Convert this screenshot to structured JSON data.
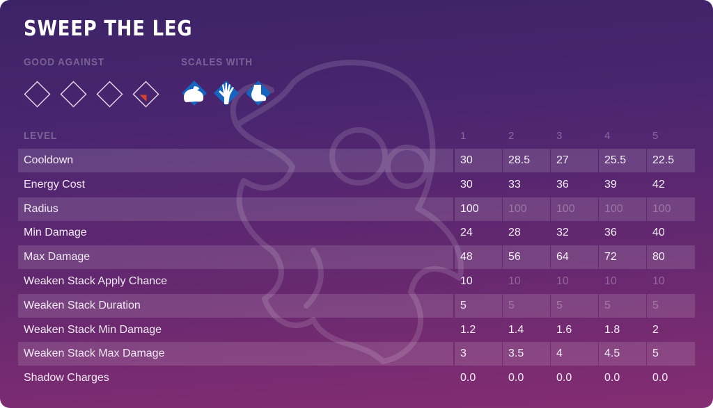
{
  "ability": {
    "title": "SWEEP THE LEG",
    "good_against_label": "GOOD AGAINST",
    "scales_with_label": "SCALES WITH",
    "good_against": [
      {
        "icon": "empty-diamond-icon",
        "active": false
      },
      {
        "icon": "empty-diamond-icon",
        "active": false
      },
      {
        "icon": "empty-diamond-icon",
        "active": false
      },
      {
        "icon": "diamond-red-corner-icon",
        "active": true,
        "accent": "#d9432e"
      }
    ],
    "scales_with": [
      {
        "icon": "strength-flexed-arm-icon",
        "color": "#1565c0"
      },
      {
        "icon": "dexterity-hand-icon",
        "color": "#1565c0"
      },
      {
        "icon": "foot-icon",
        "color": "#1565c0"
      }
    ]
  },
  "table": {
    "level_label": "LEVEL",
    "levels": [
      "1",
      "2",
      "3",
      "4",
      "5"
    ],
    "rows": [
      {
        "name": "Cooldown",
        "values": [
          "30",
          "28.5",
          "27",
          "25.5",
          "22.5"
        ],
        "dim": [
          false,
          false,
          false,
          false,
          false
        ]
      },
      {
        "name": "Energy Cost",
        "values": [
          "30",
          "33",
          "36",
          "39",
          "42"
        ],
        "dim": [
          false,
          false,
          false,
          false,
          false
        ]
      },
      {
        "name": "Radius",
        "values": [
          "100",
          "100",
          "100",
          "100",
          "100"
        ],
        "dim": [
          false,
          true,
          true,
          true,
          true
        ]
      },
      {
        "name": "Min Damage",
        "values": [
          "24",
          "28",
          "32",
          "36",
          "40"
        ],
        "dim": [
          false,
          false,
          false,
          false,
          false
        ]
      },
      {
        "name": "Max Damage",
        "values": [
          "48",
          "56",
          "64",
          "72",
          "80"
        ],
        "dim": [
          false,
          false,
          false,
          false,
          false
        ]
      },
      {
        "name": "Weaken Stack Apply Chance",
        "values": [
          "10",
          "10",
          "10",
          "10",
          "10"
        ],
        "dim": [
          false,
          true,
          true,
          true,
          true
        ]
      },
      {
        "name": "Weaken Stack Duration",
        "values": [
          "5",
          "5",
          "5",
          "5",
          "5"
        ],
        "dim": [
          false,
          true,
          true,
          true,
          true
        ]
      },
      {
        "name": "Weaken Stack Min Damage",
        "values": [
          "1.2",
          "1.4",
          "1.6",
          "1.8",
          "2"
        ],
        "dim": [
          false,
          false,
          false,
          false,
          false
        ]
      },
      {
        "name": "Weaken Stack Max Damage",
        "values": [
          "3",
          "3.5",
          "4",
          "4.5",
          "5"
        ],
        "dim": [
          false,
          false,
          false,
          false,
          false
        ]
      },
      {
        "name": "Shadow Charges",
        "values": [
          "0.0",
          "0.0",
          "0.0",
          "0.0",
          "0.0"
        ],
        "dim": [
          false,
          false,
          false,
          false,
          false
        ]
      }
    ]
  },
  "colors": {
    "bg_top": "#3c2366",
    "bg_bottom": "#852d72",
    "stat_icon_blue": "#1565c0",
    "weakness_red": "#d9432e"
  }
}
